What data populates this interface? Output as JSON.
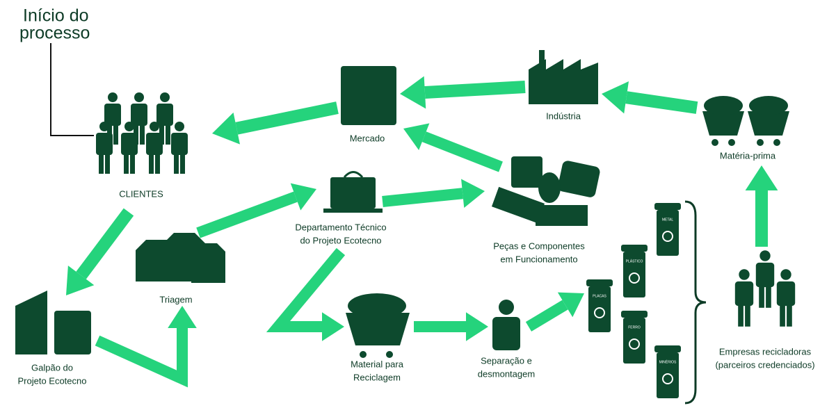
{
  "start": {
    "label": [
      "Início do",
      "processo"
    ]
  },
  "nodes": [
    {
      "label": [
        "CLIENTES"
      ]
    },
    {
      "label": [
        "Mercado"
      ]
    },
    {
      "label": [
        "Indústria"
      ]
    },
    {
      "label": [
        "Matéria-prima"
      ]
    },
    {
      "label": [
        "Departamento Técnico",
        "do Projeto Ecotecno"
      ]
    },
    {
      "label": [
        "Peças e Componentes",
        "em Funcionamento"
      ]
    },
    {
      "label": [
        "Triagem"
      ]
    },
    {
      "label": [
        "Galpão do",
        "Projeto Ecotecno"
      ]
    },
    {
      "label": [
        "Material para",
        "Reciclagem"
      ]
    },
    {
      "label": [
        "Separação e",
        "desmontagem"
      ]
    },
    {
      "label": [
        "Empresas recicladoras",
        "(parceiros credenciados)"
      ]
    }
  ],
  "bins": [
    "METAL",
    "PLÁSTICO",
    "PLACAS",
    "FERRO",
    "MINÉRIOS"
  ]
}
